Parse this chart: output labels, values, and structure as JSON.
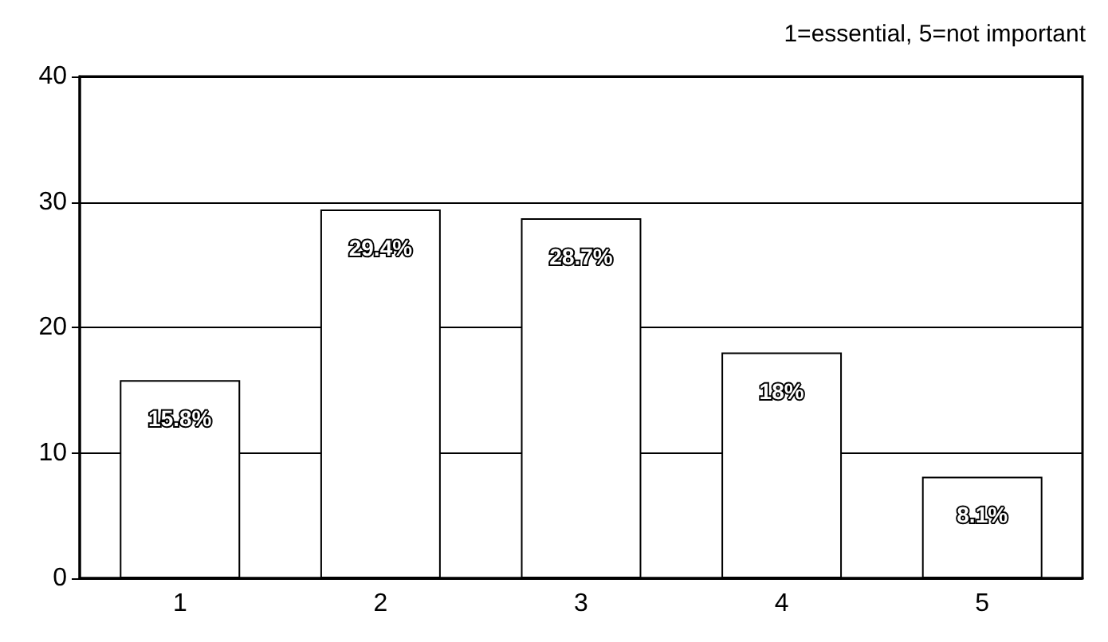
{
  "chart_data": {
    "type": "bar",
    "categories": [
      "1",
      "2",
      "3",
      "4",
      "5"
    ],
    "values": [
      15.8,
      29.4,
      28.7,
      18,
      8.1
    ],
    "value_labels": [
      "15.8%",
      "29.4%",
      "28.7%",
      "18%",
      "8.1%"
    ],
    "color": "#ffffff",
    "ylim": [
      0,
      40
    ],
    "yticks": [
      0,
      10,
      20,
      30,
      40
    ],
    "grid": "y",
    "annotations": [
      "1=essential, 5=not important"
    ]
  }
}
